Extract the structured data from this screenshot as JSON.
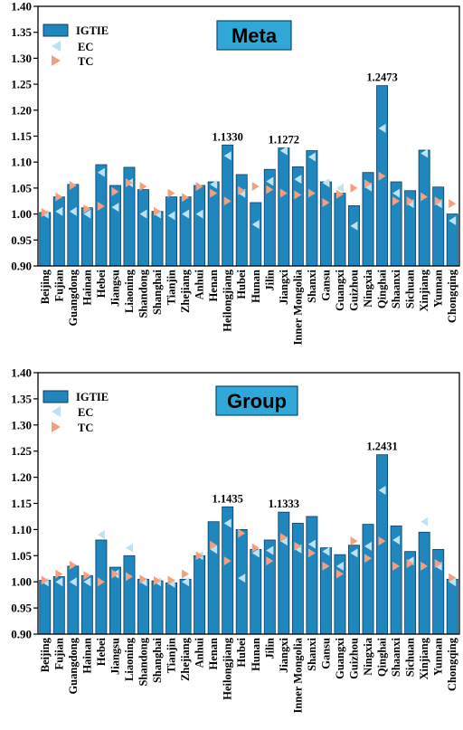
{
  "colors": {
    "bar": "#1f86be",
    "bar_edge": "#0b3f66",
    "ec_marker": "#bde3f3",
    "tc_marker": "#f4a07e",
    "title_box": "#2fa8d8"
  },
  "chart_data": [
    {
      "type": "bar",
      "title": "Meta",
      "categories": [
        "Beijing",
        "Fujian",
        "Guangdong",
        "Hainan",
        "Hebei",
        "Jiangsu",
        "Liaoning",
        "Shandong",
        "Shanghai",
        "Tianjin",
        "Zhejiang",
        "Anhui",
        "Henan",
        "Heilongjiang",
        "Hubei",
        "Hunan",
        "Jilin",
        "Jiangxi",
        "Inner Mongolia",
        "Shanxi",
        "Gansu",
        "Guangxi",
        "Guizhou",
        "Ningxia",
        "Qinghai",
        "Shaanxi",
        "Sichuan",
        "Xinjiang",
        "Yunnan",
        "Chongqing"
      ],
      "ylim": [
        0.9,
        1.4
      ],
      "yticks": [
        "0.90",
        "0.95",
        "1.00",
        "1.05",
        "1.10",
        "1.15",
        "1.20",
        "1.25",
        "1.30",
        "1.35",
        "1.40"
      ],
      "legend": {
        "placement": "top-left",
        "entries": [
          "IGTIE",
          "EC",
          "TC"
        ]
      },
      "series": [
        {
          "name": "IGTIE",
          "kind": "bar",
          "values": [
            1.003,
            1.033,
            1.057,
            1.012,
            1.095,
            1.055,
            1.09,
            1.047,
            1.005,
            1.033,
            1.033,
            1.055,
            1.062,
            1.133,
            1.076,
            1.022,
            1.086,
            1.1272,
            1.091,
            1.122,
            1.062,
            1.04,
            1.016,
            1.08,
            1.2473,
            1.062,
            1.045,
            1.123,
            1.052,
            1.0
          ]
        },
        {
          "name": "EC",
          "kind": "marker",
          "values": [
            1.0,
            1.005,
            1.005,
            1.0,
            1.08,
            1.013,
            1.06,
            1.0,
            1.0,
            0.997,
            1.0,
            1.0,
            1.057,
            1.112,
            1.04,
            0.98,
            1.063,
            1.122,
            1.067,
            1.11,
            1.06,
            1.05,
            0.977,
            1.052,
            1.165,
            1.04,
            1.02,
            1.117,
            1.02,
            0.987
          ]
        },
        {
          "name": "TC",
          "kind": "marker",
          "values": [
            1.003,
            1.033,
            1.055,
            1.01,
            1.015,
            1.043,
            1.06,
            1.053,
            1.005,
            1.04,
            1.032,
            1.053,
            1.04,
            1.025,
            1.045,
            1.053,
            1.047,
            1.04,
            1.037,
            1.04,
            1.022,
            1.038,
            1.05,
            1.058,
            1.073,
            1.025,
            1.025,
            1.033,
            1.025,
            1.02
          ]
        }
      ],
      "annotations": [
        {
          "category": "Heilongjiang",
          "text": "1.1330"
        },
        {
          "category": "Jiangxi",
          "text": "1.1272"
        },
        {
          "category": "Qinghai",
          "text": "1.2473"
        }
      ]
    },
    {
      "type": "bar",
      "title": "Group",
      "categories": [
        "Beijing",
        "Fujian",
        "Guangdong",
        "Hainan",
        "Hebei",
        "Jiangsu",
        "Liaoning",
        "Shandong",
        "Shanghai",
        "Tianjin",
        "Zhejiang",
        "Anhui",
        "Henan",
        "Heilongjiang",
        "Hubei",
        "Hunan",
        "Jilin",
        "Jiangxi",
        "Inner Mongolia",
        "Shanxi",
        "Gansu",
        "Guangxi",
        "Guizhou",
        "Ningxia",
        "Qinghai",
        "Shaanxi",
        "Sichuan",
        "Xinjiang",
        "Yunnan",
        "Chongqing"
      ],
      "ylim": [
        0.9,
        1.4
      ],
      "yticks": [
        "0.90",
        "0.95",
        "1.00",
        "1.05",
        "1.10",
        "1.15",
        "1.20",
        "1.25",
        "1.30",
        "1.35",
        "1.40"
      ],
      "legend": {
        "placement": "top-left",
        "entries": [
          "IGTIE",
          "EC",
          "TC"
        ]
      },
      "series": [
        {
          "name": "IGTIE",
          "kind": "bar",
          "values": [
            1.003,
            1.01,
            1.03,
            1.012,
            1.08,
            1.028,
            1.05,
            1.005,
            1.002,
            0.998,
            1.005,
            1.05,
            1.115,
            1.1435,
            1.1,
            1.062,
            1.08,
            1.1333,
            1.112,
            1.125,
            1.065,
            1.052,
            1.07,
            1.11,
            1.2431,
            1.107,
            1.058,
            1.095,
            1.062,
            1.005
          ]
        },
        {
          "name": "EC",
          "kind": "marker",
          "values": [
            1.0,
            1.0,
            1.0,
            1.0,
            1.09,
            1.015,
            1.065,
            1.0,
            1.0,
            0.997,
            1.0,
            1.05,
            1.062,
            1.112,
            1.007,
            1.055,
            1.06,
            1.078,
            1.063,
            1.072,
            1.058,
            1.03,
            1.055,
            1.068,
            1.175,
            1.08,
            1.04,
            1.115,
            1.03,
            1.0
          ]
        },
        {
          "name": "TC",
          "kind": "marker",
          "values": [
            1.003,
            1.015,
            1.032,
            1.012,
            1.0,
            1.015,
            1.01,
            1.005,
            1.002,
            1.003,
            1.015,
            1.05,
            1.07,
            1.04,
            1.093,
            1.065,
            1.04,
            1.085,
            1.068,
            1.055,
            1.03,
            1.015,
            1.078,
            1.045,
            1.078,
            1.03,
            1.035,
            1.03,
            1.035,
            1.008
          ]
        }
      ],
      "annotations": [
        {
          "category": "Heilongjiang",
          "text": "1.1435"
        },
        {
          "category": "Jiangxi",
          "text": "1.1333"
        },
        {
          "category": "Qinghai",
          "text": "1.2431"
        }
      ]
    }
  ]
}
